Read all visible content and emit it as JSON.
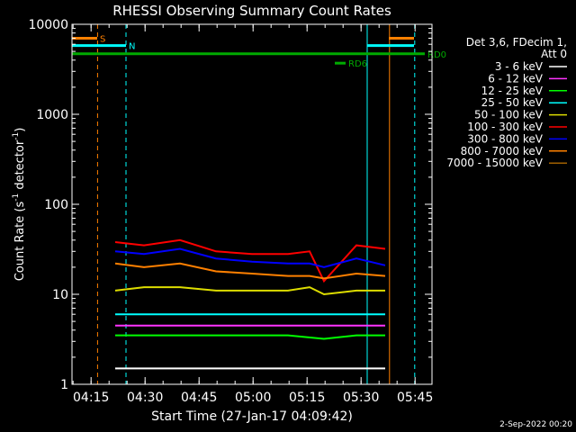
{
  "chart_data": {
    "type": "line",
    "title": "RHESSI Observing Summary Count Rates",
    "xlabel": "Start Time (27-Jan-17 04:09:42)",
    "ylabel_parts": [
      "Count Rate (s",
      "-1",
      " detector",
      "-1",
      ")"
    ],
    "footer": "2-Sep-2022 00:20",
    "x_unit": "minutes since 04:09:42",
    "xlim": [
      0,
      100
    ],
    "ylim": [
      1,
      10000
    ],
    "yscale": "log",
    "xticks": [
      {
        "label": "04:15",
        "t": 5.3
      },
      {
        "label": "04:30",
        "t": 20.3
      },
      {
        "label": "04:45",
        "t": 35.3
      },
      {
        "label": "05:00",
        "t": 50.3
      },
      {
        "label": "05:15",
        "t": 65.3
      },
      {
        "label": "05:30",
        "t": 80.3
      },
      {
        "label": "05:45",
        "t": 95.3
      }
    ],
    "yticks": [
      {
        "label": "1",
        "v": 1
      },
      {
        "label": "10",
        "v": 10
      },
      {
        "label": "100",
        "v": 100
      },
      {
        "label": "1000",
        "v": 1000
      },
      {
        "label": "10000",
        "v": 10000
      }
    ],
    "legend": {
      "header": [
        "Det 3,6, FDecim 1,",
        "Att 0"
      ],
      "entries": [
        {
          "label": "3 - 6 keV",
          "color": "#ffffff"
        },
        {
          "label": "6 - 12 keV",
          "color": "#ff33ff"
        },
        {
          "label": "12 - 25 keV",
          "color": "#00ff00"
        },
        {
          "label": "25 - 50 keV",
          "color": "#00ffff"
        },
        {
          "label": "50 - 100 keV",
          "color": "#dddd00"
        },
        {
          "label": "100 - 300 keV",
          "color": "#ff0000"
        },
        {
          "label": "300 - 800 keV",
          "color": "#0000ff"
        },
        {
          "label": "800 - 7000 keV",
          "color": "#ff8000"
        },
        {
          "label": "7000 - 15000 keV",
          "color": "#a06000"
        }
      ]
    },
    "series": [
      {
        "name": "3 - 6 keV",
        "color": "#ffffff",
        "t": [
          12,
          30,
          45,
          60,
          70,
          79,
          87
        ],
        "v": [
          1.5,
          1.5,
          1.5,
          1.5,
          1.5,
          1.5,
          1.5
        ]
      },
      {
        "name": "6 - 12 keV",
        "color": "#ff33ff",
        "t": [
          12,
          30,
          45,
          60,
          70,
          79,
          87
        ],
        "v": [
          4.5,
          4.5,
          4.5,
          4.5,
          4.5,
          4.5,
          4.5
        ]
      },
      {
        "name": "12 - 25 keV",
        "color": "#00ff00",
        "t": [
          12,
          30,
          45,
          60,
          70,
          79,
          87
        ],
        "v": [
          3.5,
          3.5,
          3.5,
          3.5,
          3.2,
          3.5,
          3.5
        ]
      },
      {
        "name": "25 - 50 keV",
        "color": "#00ffff",
        "t": [
          12,
          30,
          45,
          60,
          70,
          79,
          87
        ],
        "v": [
          6,
          6,
          6,
          6,
          6,
          6,
          6
        ]
      },
      {
        "name": "50 - 100 keV",
        "color": "#dddd00",
        "t": [
          12,
          20,
          30,
          40,
          50,
          60,
          66,
          70,
          79,
          87
        ],
        "v": [
          11,
          12,
          12,
          11,
          11,
          11,
          12,
          10,
          11,
          11
        ]
      },
      {
        "name": "100 - 300 keV",
        "color": "#ff0000",
        "t": [
          12,
          20,
          30,
          40,
          50,
          60,
          66,
          70,
          79,
          87
        ],
        "v": [
          38,
          35,
          40,
          30,
          28,
          28,
          30,
          14,
          35,
          32
        ]
      },
      {
        "name": "300 - 800 keV",
        "color": "#0000ff",
        "t": [
          12,
          20,
          30,
          40,
          50,
          60,
          66,
          70,
          79,
          87
        ],
        "v": [
          30,
          28,
          32,
          25,
          23,
          22,
          22,
          20,
          25,
          21
        ]
      },
      {
        "name": "800 - 7000 keV",
        "color": "#ff8000",
        "t": [
          12,
          20,
          30,
          40,
          50,
          60,
          66,
          70,
          79,
          87
        ],
        "v": [
          22,
          20,
          22,
          18,
          17,
          16,
          16,
          15,
          17,
          16
        ]
      }
    ],
    "bars": [
      {
        "label": "S",
        "color": "#ff8000",
        "v": 7000,
        "t": [
          0,
          7
        ]
      },
      {
        "label": "",
        "color": "#ff8000",
        "v": 7000,
        "t": [
          88,
          95
        ]
      },
      {
        "label": "N",
        "color": "#00ffff",
        "v": 5800,
        "t": [
          0,
          15
        ]
      },
      {
        "label": "",
        "color": "#00ffff",
        "v": 5800,
        "t": [
          82,
          95
        ]
      },
      {
        "label": "RD0",
        "color": "#00aa00",
        "v": 4700,
        "t": [
          0,
          98
        ]
      },
      {
        "label": "RD6",
        "color": "#00aa00",
        "v": 3700,
        "t": [
          73,
          76
        ]
      }
    ],
    "vlines": [
      {
        "t": 7.1,
        "color": "#ff8000",
        "style": "dashed"
      },
      {
        "t": 15.0,
        "color": "#00ffff",
        "style": "dashed"
      },
      {
        "t": 82.0,
        "color": "#00ffff",
        "style": "solid"
      },
      {
        "t": 88.2,
        "color": "#ff8000",
        "style": "solid"
      },
      {
        "t": 95.2,
        "color": "#00ffff",
        "style": "dashed"
      }
    ]
  }
}
